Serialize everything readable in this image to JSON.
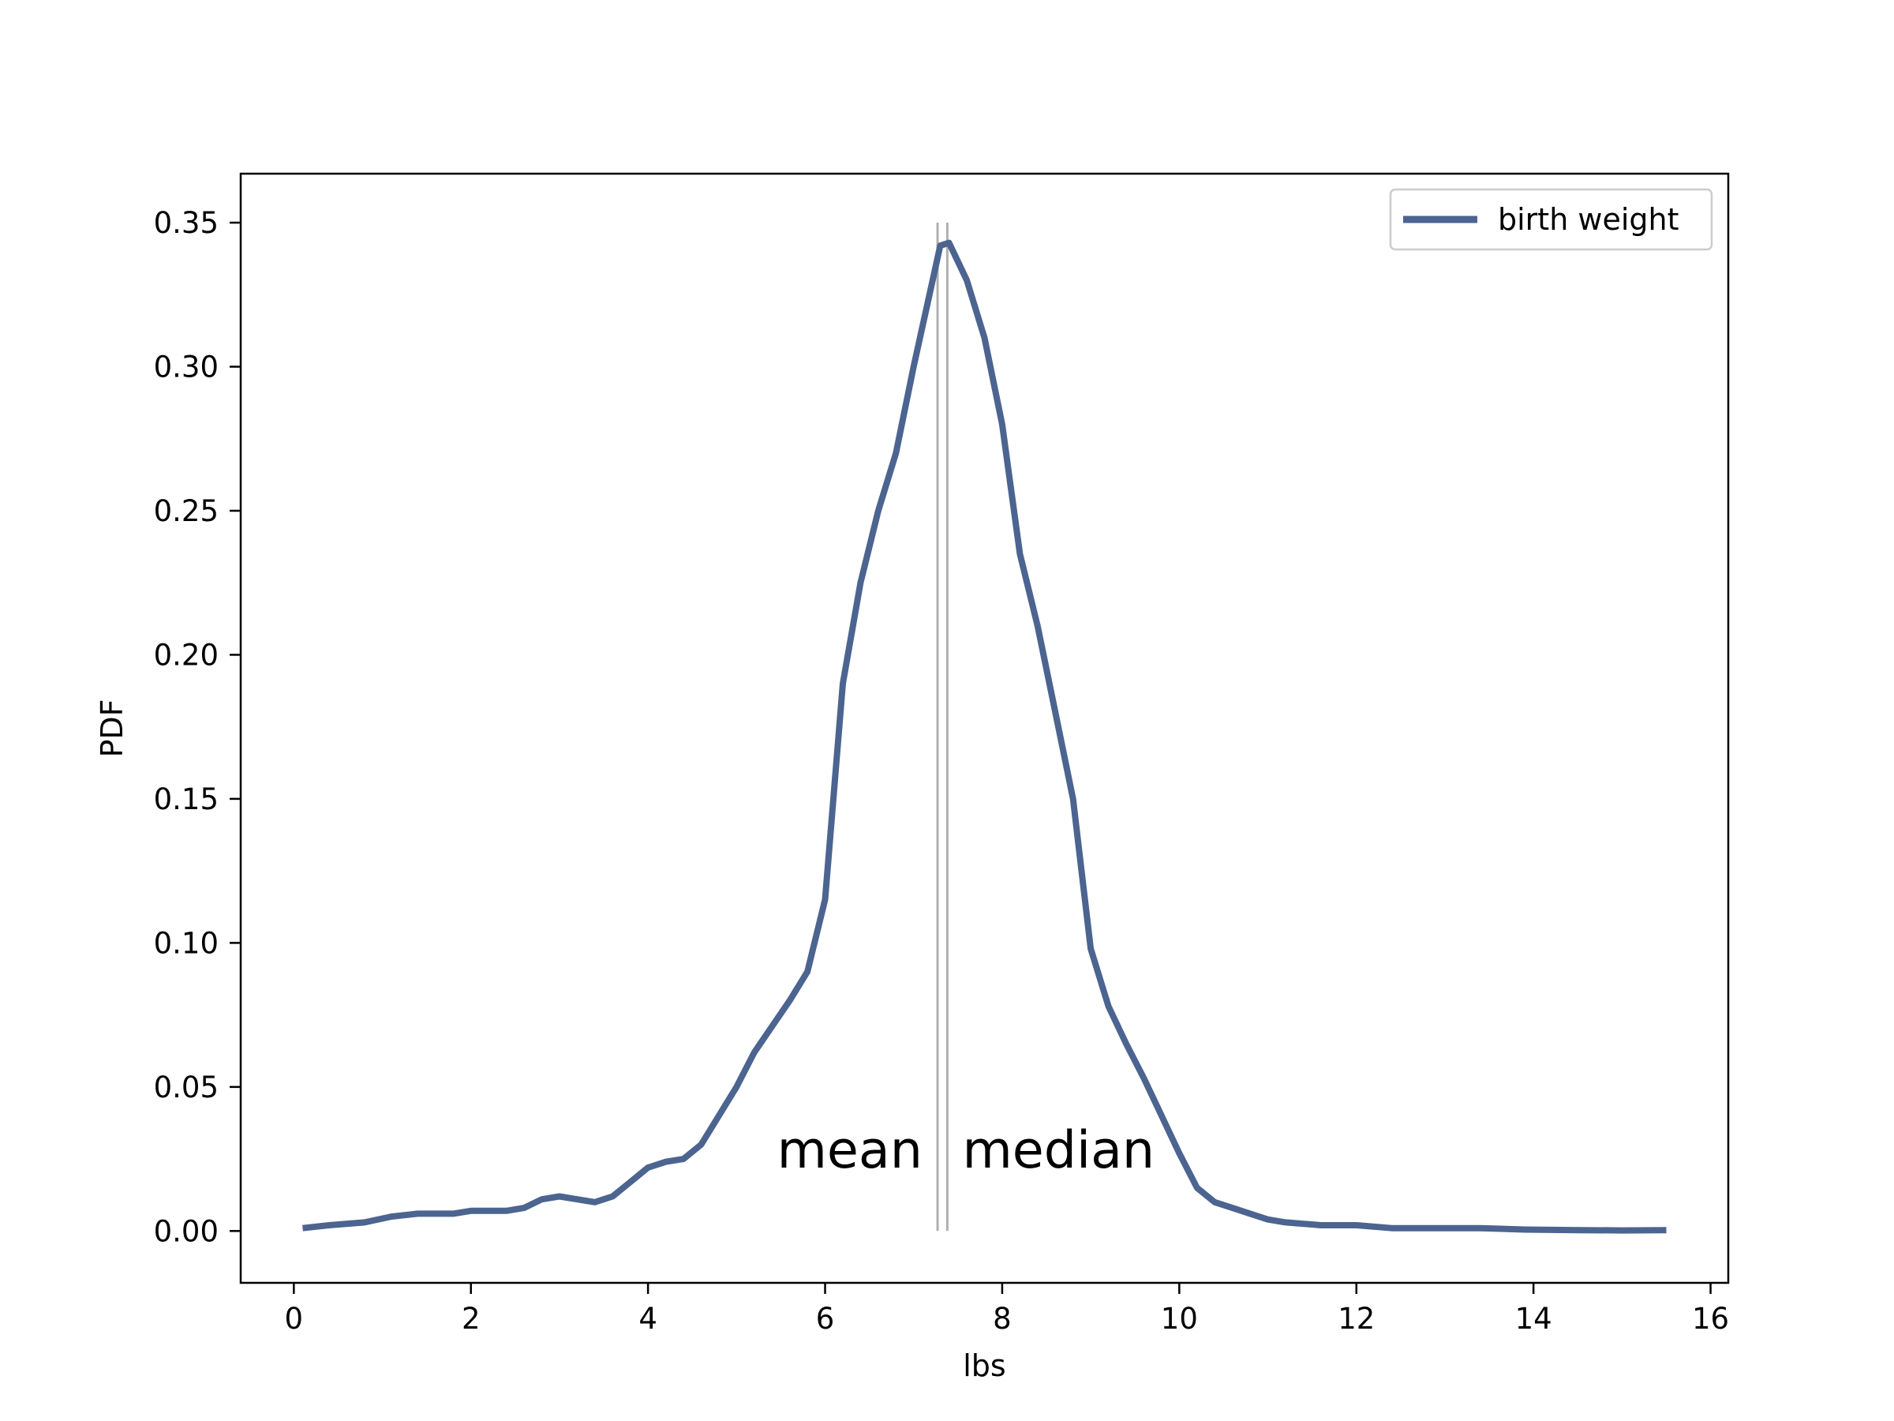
{
  "chart_data": {
    "type": "line",
    "title": "",
    "xlabel": "lbs",
    "ylabel": "PDF",
    "xlim": [
      -0.6,
      16.2
    ],
    "ylim": [
      -0.018,
      0.367
    ],
    "xticks": [
      0,
      2,
      4,
      6,
      8,
      10,
      12,
      14,
      16
    ],
    "xtick_labels": [
      "0",
      "2",
      "4",
      "6",
      "8",
      "10",
      "12",
      "14",
      "16"
    ],
    "yticks": [
      0.0,
      0.05,
      0.1,
      0.15,
      0.2,
      0.25,
      0.3,
      0.35
    ],
    "ytick_labels": [
      "0.00",
      "0.05",
      "0.10",
      "0.15",
      "0.20",
      "0.25",
      "0.30",
      "0.35"
    ],
    "grid": false,
    "legend_position": "upper-right",
    "series": [
      {
        "name": "birth weight",
        "color": "#4c6490",
        "x": [
          0.1,
          0.4,
          0.8,
          1.1,
          1.4,
          1.8,
          2.0,
          2.2,
          2.4,
          2.6,
          2.8,
          3.0,
          3.2,
          3.4,
          3.6,
          3.8,
          4.0,
          4.2,
          4.4,
          4.6,
          4.8,
          5.0,
          5.2,
          5.4,
          5.6,
          5.8,
          6.0,
          6.2,
          6.4,
          6.6,
          6.8,
          7.0,
          7.2,
          7.3,
          7.4,
          7.6,
          7.8,
          8.0,
          8.2,
          8.4,
          8.6,
          8.8,
          9.0,
          9.2,
          9.4,
          9.6,
          9.8,
          10.0,
          10.2,
          10.4,
          10.6,
          10.8,
          11.0,
          11.2,
          11.6,
          12.0,
          12.4,
          12.8,
          13.4,
          13.9,
          14.5,
          15.0,
          15.5
        ],
        "y": [
          0.001,
          0.002,
          0.003,
          0.005,
          0.006,
          0.006,
          0.007,
          0.007,
          0.007,
          0.008,
          0.011,
          0.012,
          0.011,
          0.01,
          0.012,
          0.017,
          0.022,
          0.024,
          0.025,
          0.03,
          0.04,
          0.05,
          0.062,
          0.071,
          0.08,
          0.09,
          0.115,
          0.19,
          0.225,
          0.25,
          0.27,
          0.3,
          0.328,
          0.342,
          0.343,
          0.33,
          0.31,
          0.28,
          0.235,
          0.21,
          0.18,
          0.15,
          0.098,
          0.078,
          0.065,
          0.053,
          0.04,
          0.027,
          0.015,
          0.01,
          0.008,
          0.006,
          0.004,
          0.003,
          0.002,
          0.002,
          0.001,
          0.001,
          0.001,
          0.0005,
          0.0003,
          0.0002,
          0.0003
        ]
      }
    ],
    "vlines": [
      {
        "x": 7.27,
        "y_from": 0.0,
        "y_to": 0.35,
        "color": "#b0b0b0"
      },
      {
        "x": 7.38,
        "y_from": 0.0,
        "y_to": 0.35,
        "color": "#b0b0b0"
      }
    ],
    "annotations": [
      {
        "text": "mean",
        "x": 7.1,
        "y": 0.022,
        "align": "end"
      },
      {
        "text": "median",
        "x": 7.55,
        "y": 0.022,
        "align": "start"
      }
    ]
  }
}
